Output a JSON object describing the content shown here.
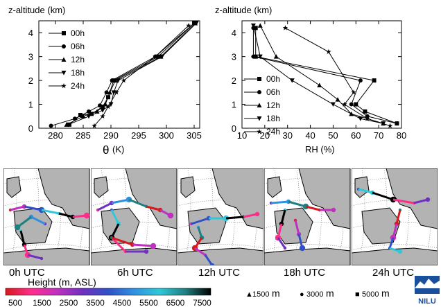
{
  "chart_data": [
    {
      "type": "line",
      "ylabel": "z-altitude (km)",
      "xlabel_symbol": "θ",
      "xlabel_unit": "(K)",
      "xlim": [
        277,
        306
      ],
      "ylim": [
        0,
        4.5
      ],
      "xticks": [
        280,
        285,
        290,
        295,
        300,
        305
      ],
      "yticks": [
        0,
        1,
        2,
        3,
        4
      ],
      "series": [
        {
          "name": "00h",
          "marker": "square",
          "points": [
            [
              282.5,
              0.15
            ],
            [
              284.5,
              0.55
            ],
            [
              286.5,
              0.6
            ],
            [
              288.5,
              0.9
            ],
            [
              289.5,
              1.3
            ],
            [
              290.5,
              2.0
            ],
            [
              298.5,
              3.0
            ],
            [
              305.0,
              4.4
            ]
          ]
        },
        {
          "name": "06h",
          "marker": "circle",
          "points": [
            [
              279.2,
              0.1
            ],
            [
              283.5,
              0.4
            ],
            [
              286.0,
              0.7
            ],
            [
              288.0,
              0.95
            ],
            [
              289.2,
              1.5
            ],
            [
              290.2,
              2.0
            ],
            [
              298.0,
              3.0
            ],
            [
              305.0,
              4.4
            ]
          ]
        },
        {
          "name": "12h",
          "marker": "triangle-up",
          "points": [
            [
              282.0,
              0.15
            ],
            [
              285.0,
              0.5
            ],
            [
              287.5,
              0.7
            ],
            [
              289.0,
              1.0
            ],
            [
              289.8,
              1.5
            ],
            [
              290.8,
              2.0
            ],
            [
              299.0,
              3.0
            ],
            [
              305.2,
              4.4
            ]
          ]
        },
        {
          "name": "18h",
          "marker": "triangle-down",
          "points": [
            [
              282.3,
              0.15
            ],
            [
              286.0,
              0.5
            ],
            [
              288.5,
              0.75
            ],
            [
              290.0,
              1.0
            ],
            [
              290.5,
              1.5
            ],
            [
              291.3,
              2.0
            ],
            [
              299.2,
              3.0
            ],
            [
              305.4,
              4.4
            ]
          ]
        },
        {
          "name": "24h",
          "marker": "star",
          "points": [
            [
              287.0,
              0.1
            ],
            [
              288.5,
              0.5
            ],
            [
              289.5,
              0.9
            ],
            [
              291.0,
              1.5
            ],
            [
              292.3,
              2.0
            ],
            [
              298.0,
              3.0
            ],
            [
              304.0,
              4.3
            ]
          ]
        }
      ]
    },
    {
      "type": "line",
      "ylabel": "z-altitude (km)",
      "xlabel": "RH (%)",
      "xlim": [
        10,
        80
      ],
      "ylim": [
        0,
        4.5
      ],
      "xticks": [
        10,
        20,
        30,
        40,
        50,
        60,
        70,
        80
      ],
      "yticks": [
        0,
        1,
        2,
        3,
        4
      ],
      "series": [
        {
          "name": "00h",
          "marker": "square",
          "points": [
            [
              78,
              0.2
            ],
            [
              64,
              0.7
            ],
            [
              60,
              1.0
            ],
            [
              68,
              2.0
            ],
            [
              16,
              3.0
            ],
            [
              16,
              4.2
            ]
          ]
        },
        {
          "name": "06h",
          "marker": "circle",
          "points": [
            [
              78,
              0.2
            ],
            [
              65,
              0.5
            ],
            [
              58,
              1.0
            ],
            [
              62,
              2.0
            ],
            [
              15,
              3.0
            ],
            [
              15,
              4.2
            ]
          ]
        },
        {
          "name": "12h",
          "marker": "triangle-up",
          "points": [
            [
              72,
              0.2
            ],
            [
              58,
              0.6
            ],
            [
              52,
              1.2
            ],
            [
              44,
              1.8
            ],
            [
              25,
              3.0
            ],
            [
              18,
              4.3
            ]
          ]
        },
        {
          "name": "18h",
          "marker": "triangle-down",
          "points": [
            [
              72,
              0.2
            ],
            [
              62,
              0.4
            ],
            [
              50,
              1.0
            ],
            [
              32,
              2.0
            ],
            [
              18,
              3.0
            ],
            [
              15,
              4.3
            ]
          ]
        },
        {
          "name": "24h",
          "marker": "star",
          "points": [
            [
              75,
              0.1
            ],
            [
              65,
              0.4
            ],
            [
              55,
              1.0
            ],
            [
              59,
              1.5
            ],
            [
              48,
              3.2
            ],
            [
              29,
              4.2
            ]
          ]
        }
      ]
    }
  ],
  "panels": {
    "labels": [
      "0h UTC",
      "6h UTC",
      "12h UTC",
      "18h UTC",
      "24h UTC"
    ]
  },
  "colorbar": {
    "title": "Height (m, ASL)",
    "ticks": [
      "500",
      "1500",
      "2500",
      "3500",
      "4500",
      "5500",
      "6500",
      "7500"
    ],
    "stops": [
      "#d7191c",
      "#ff2d8a",
      "#c030c0",
      "#7030c0",
      "#3050c8",
      "#3090e0",
      "#30c8d8",
      "#208080",
      "#000000"
    ]
  },
  "size_legend": {
    "items": [
      {
        "marker": "▲",
        "value": "1500",
        "unit": "m"
      },
      {
        "marker": "●",
        "value": "3000",
        "unit": "m"
      },
      {
        "marker": "■",
        "value": "5000",
        "unit": "m"
      }
    ]
  },
  "logo": {
    "text": "NILU"
  }
}
